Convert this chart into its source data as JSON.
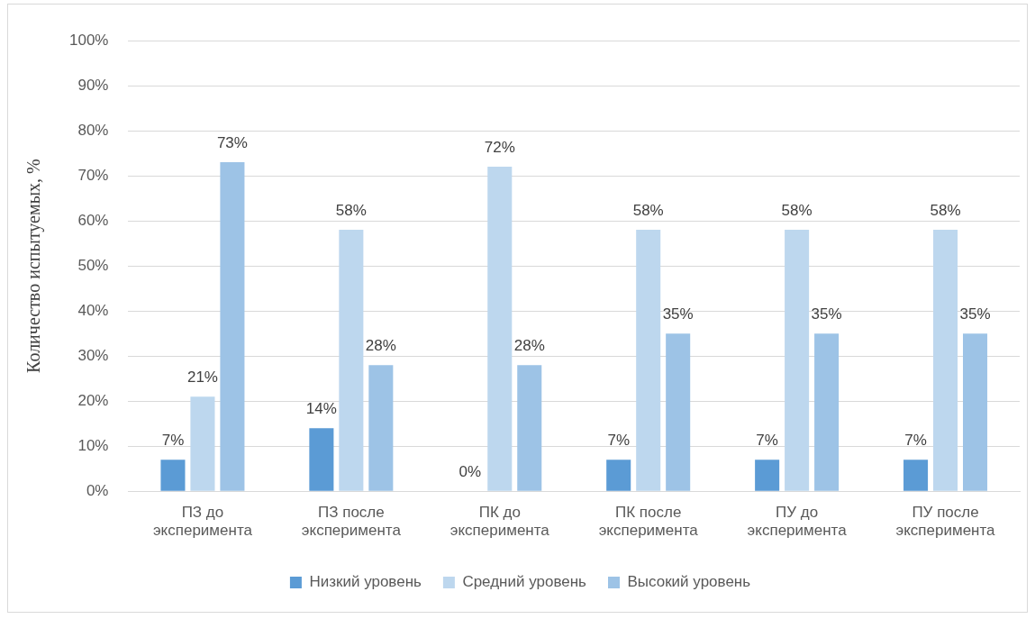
{
  "chart_data": {
    "type": "bar",
    "ylabel": "Количество испытуемых, %",
    "categories": [
      "ПЗ до эксперимента",
      "ПЗ после эксперимента",
      "ПК до эксперимента",
      "ПК после эксперимента",
      "ПУ до эксперимента",
      "ПУ после эксперимента"
    ],
    "series": [
      {
        "name": "Низкий уровень",
        "color": "#5b9bd5",
        "values": [
          7,
          14,
          0,
          7,
          7,
          7
        ]
      },
      {
        "name": "Средний уровень",
        "color": "#bdd7ee",
        "values": [
          21,
          58,
          72,
          58,
          58,
          58
        ]
      },
      {
        "name": "Высокий уровень",
        "color": "#9dc3e6",
        "values": [
          73,
          28,
          28,
          35,
          35,
          35
        ]
      }
    ],
    "ylim": [
      0,
      100
    ],
    "yticks": [
      {
        "value": 0,
        "label": "0%"
      },
      {
        "value": 10,
        "label": "10%"
      },
      {
        "value": 20,
        "label": "20%"
      },
      {
        "value": 30,
        "label": "30%"
      },
      {
        "value": 40,
        "label": "40%"
      },
      {
        "value": 50,
        "label": "50%"
      },
      {
        "value": 60,
        "label": "60%"
      },
      {
        "value": 70,
        "label": "70%"
      },
      {
        "value": 80,
        "label": "80%"
      },
      {
        "value": 90,
        "label": "90%"
      },
      {
        "value": 100,
        "label": "100%"
      }
    ],
    "value_labels": [
      [
        "7%",
        "14%",
        "0%",
        "7%",
        "7%",
        "7%"
      ],
      [
        "21%",
        "58%",
        "72%",
        "58%",
        "58%",
        "58%"
      ],
      [
        "73%",
        "28%",
        "28%",
        "35%",
        "35%",
        "35%"
      ]
    ],
    "grid": "y",
    "legend": "bottom"
  }
}
